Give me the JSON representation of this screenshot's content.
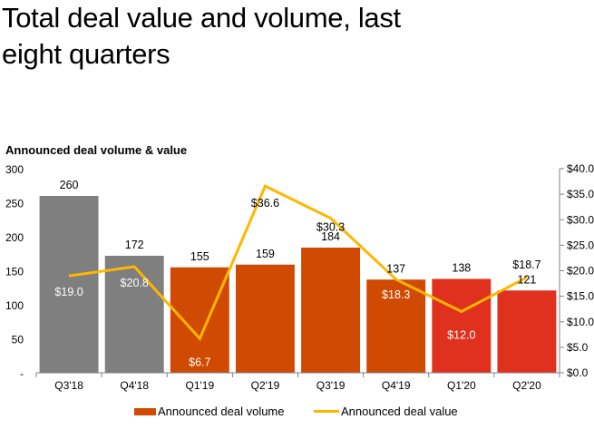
{
  "page": {
    "title_line1": "Total deal value and volume, last",
    "title_line2": "eight quarters"
  },
  "chart_data": {
    "type": "bar",
    "subtitle": "Announced deal volume & value",
    "categories": [
      "Q3'18",
      "Q4'18",
      "Q1'19",
      "Q2'19",
      "Q3'19",
      "Q4'19",
      "Q1'20",
      "Q2'20"
    ],
    "series": [
      {
        "name": "Announced deal volume",
        "type": "bar",
        "axis": "left",
        "values": [
          260,
          172,
          155,
          159,
          184,
          137,
          138,
          121
        ],
        "labels": [
          "260",
          "172",
          "155",
          "159",
          "184",
          "137",
          "138",
          "121"
        ],
        "colors": [
          "#7f7f7f",
          "#7f7f7f",
          "#d04a02",
          "#d04a02",
          "#d04a02",
          "#d04a02",
          "#e0301e",
          "#e0301e"
        ]
      },
      {
        "name": "Announced deal value",
        "type": "line",
        "axis": "right",
        "values": [
          19.0,
          20.8,
          6.7,
          36.6,
          30.3,
          18.3,
          12.0,
          18.7
        ],
        "labels": [
          "$19.0",
          "$20.8",
          "$6.7",
          "$36.6",
          "$30.3",
          "$18.3",
          "$12.0",
          "$18.7"
        ],
        "color": "#ffb600"
      }
    ],
    "left_axis": {
      "range": [
        0,
        300
      ],
      "ticks": [
        "-",
        "50",
        "100",
        "150",
        "200",
        "250",
        "300"
      ],
      "tick_values": [
        0,
        50,
        100,
        150,
        200,
        250,
        300
      ]
    },
    "right_axis": {
      "range": [
        0,
        40
      ],
      "ticks": [
        "$0.0",
        "$5.0",
        "$10.0",
        "$15.0",
        "$20.0",
        "$25.0",
        "$30.0",
        "$35.0",
        "$40.0"
      ],
      "tick_values": [
        0,
        5,
        10,
        15,
        20,
        25,
        30,
        35,
        40
      ]
    },
    "grid": false,
    "legend": {
      "placement": "bottom",
      "items": [
        "Announced deal volume",
        "Announced deal value"
      ]
    }
  }
}
